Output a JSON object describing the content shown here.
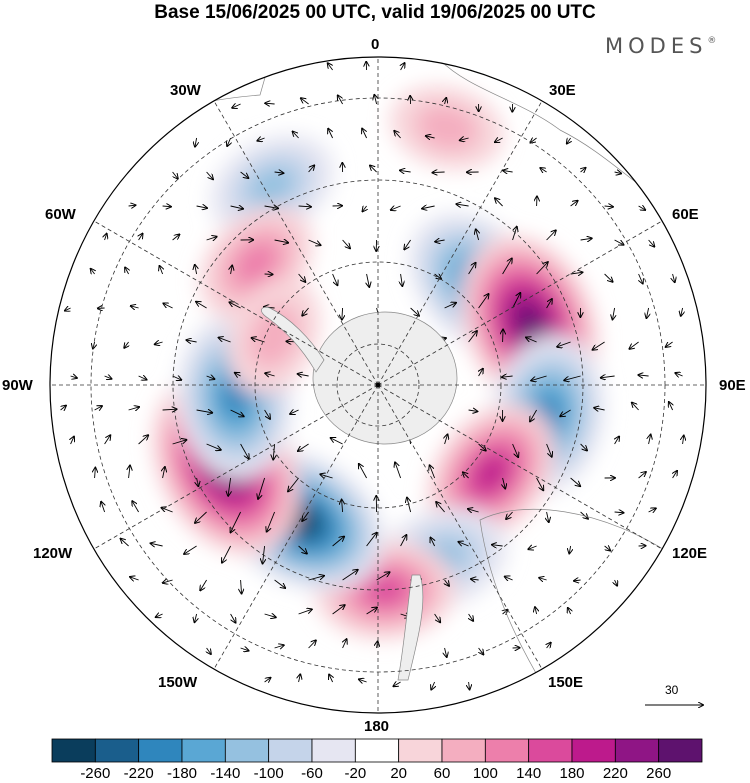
{
  "title": "Base 15/06/2025 00 UTC, valid 19/06/2025 00 UTC",
  "brand": {
    "name": "MODES",
    "mark": "®"
  },
  "longitude_labels": {
    "lon_0": "0",
    "lon_30e": "30E",
    "lon_60e": "60E",
    "lon_90e": "90E",
    "lon_120e": "120E",
    "lon_150e": "150E",
    "lon_180": "180",
    "lon_150w": "150W",
    "lon_120w": "120W",
    "lon_90w": "90W",
    "lon_60w": "60W",
    "lon_30w": "30W"
  },
  "reference_vector": {
    "value": "30"
  },
  "colorbar": {
    "ticks": [
      "-260",
      "-220",
      "-180",
      "-140",
      "-100",
      "-60",
      "-20",
      "20",
      "60",
      "100",
      "140",
      "180",
      "220",
      "260"
    ],
    "colors": [
      "#0a3d5c",
      "#1a5e8c",
      "#2f86bd",
      "#5aa7d4",
      "#95c1e0",
      "#c5d4ea",
      "#e6e6f2",
      "#ffffff",
      "#f8d5da",
      "#f4aec0",
      "#ed7fab",
      "#db4a9c",
      "#bd1a8c",
      "#8f1585",
      "#5e126e"
    ]
  },
  "anomaly_centers": [
    {
      "lon": 45,
      "lat": -55,
      "value": -190
    },
    {
      "lon": 68,
      "lat": -50,
      "value": 250
    },
    {
      "lon": 100,
      "lat": -48,
      "value": -180
    },
    {
      "lon": 128,
      "lat": -55,
      "value": 160
    },
    {
      "lon": 160,
      "lat": -45,
      "value": -110
    },
    {
      "lon": 178,
      "lat": -40,
      "value": 120
    },
    {
      "lon": -150,
      "lat": -52,
      "value": -240
    },
    {
      "lon": -118,
      "lat": -48,
      "value": 270
    },
    {
      "lon": -95,
      "lat": -55,
      "value": -190
    },
    {
      "lon": -28,
      "lat": -35,
      "value": -90
    },
    {
      "lon": -45,
      "lat": -48,
      "value": 90
    },
    {
      "lon": -65,
      "lat": -62,
      "value": 60
    },
    {
      "lon": 15,
      "lat": -25,
      "value": 40
    }
  ]
}
